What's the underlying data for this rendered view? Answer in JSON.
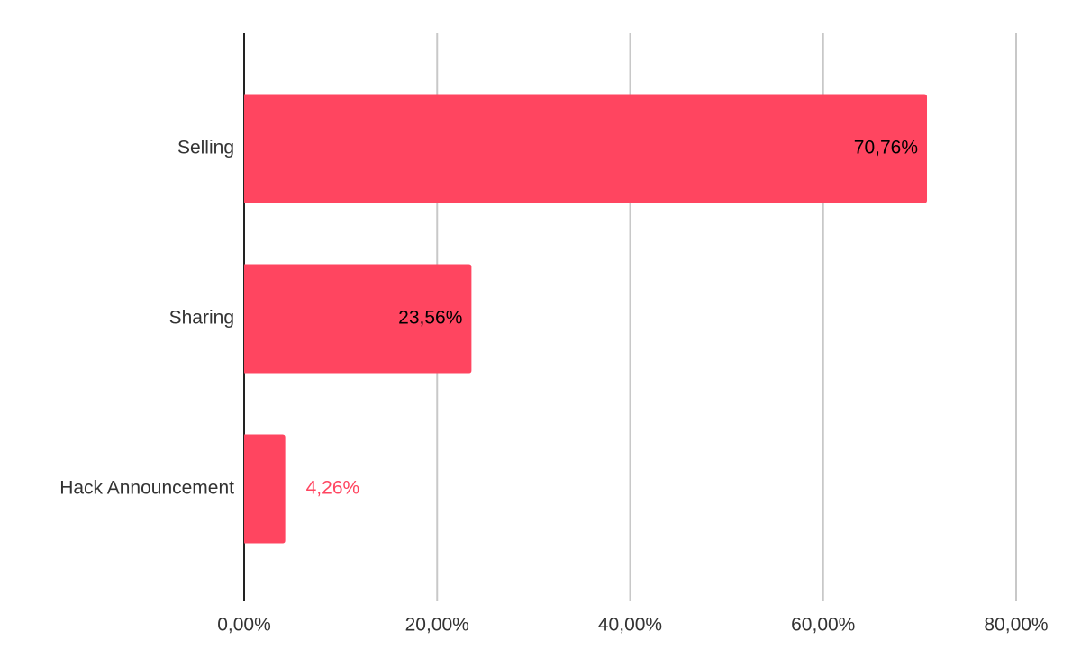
{
  "chart_data": {
    "type": "bar",
    "orientation": "horizontal",
    "categories": [
      "Selling",
      "Sharing",
      "Hack Announcement"
    ],
    "values": [
      70.76,
      23.56,
      4.26
    ],
    "value_labels": [
      "70,76%",
      "23,56%",
      "4,26%"
    ],
    "color": "#ff4560",
    "xlim": [
      0,
      80
    ],
    "xticks": [
      {
        "value": 0,
        "label": "0,00%"
      },
      {
        "value": 20,
        "label": "20,00%"
      },
      {
        "value": 40,
        "label": "40,00%"
      },
      {
        "value": 60,
        "label": "60,00%"
      },
      {
        "value": 80,
        "label": "80,00%"
      }
    ],
    "grid": true
  }
}
